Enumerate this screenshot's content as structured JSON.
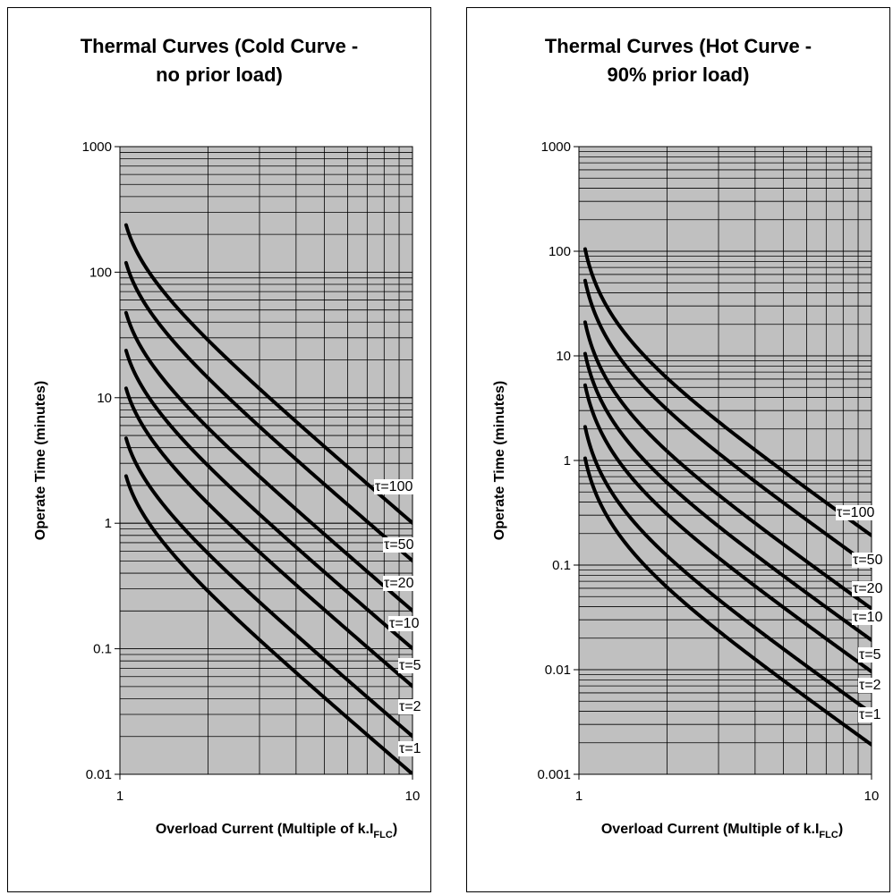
{
  "chart_data": [
    {
      "type": "line",
      "title_lines": [
        "Thermal Curves (Cold Curve -",
        "no prior load)"
      ],
      "xlabel": "Overload Current (Multiple of k.I",
      "xlabel_sub": "FLC",
      "xlabel_end": ")",
      "ylabel": "Operate Time (minutes)",
      "xscale": "log",
      "yscale": "log",
      "xlim": [
        1,
        10
      ],
      "ylim": [
        0.01,
        1000
      ],
      "x_ticks": [
        {
          "v": 1,
          "label": "1"
        },
        {
          "v": 10,
          "label": "10"
        }
      ],
      "y_ticks": [
        {
          "v": 0.01,
          "label": "0.01"
        },
        {
          "v": 0.1,
          "label": "0.1"
        },
        {
          "v": 1,
          "label": "1"
        },
        {
          "v": 10,
          "label": "10"
        },
        {
          "v": 100,
          "label": "100"
        },
        {
          "v": 1000,
          "label": "1000"
        }
      ],
      "grid": true,
      "plot_background": "#c0c0c0",
      "line_color": "#000000",
      "prior_load": 0.0,
      "x": [
        1.05,
        1.1,
        1.2,
        1.3,
        1.5,
        1.75,
        2,
        2.5,
        3,
        4,
        5,
        6,
        7,
        8,
        9,
        10
      ],
      "series": [
        {
          "label": "τ=100",
          "values": [
            237.9,
            154.1,
            93.6,
            68.3,
            44.6,
            30.4,
            22.6,
            14.3,
            10.0,
            5.99,
            4.06,
            2.94,
            2.24,
            1.75,
            1.4,
            1.13
          ]
        },
        {
          "label": "τ=50",
          "values": [
            118.9,
            77.0,
            46.8,
            34.1,
            22.3,
            15.2,
            11.3,
            7.16,
            5.03,
            3.0,
            2.03,
            1.47,
            1.12,
            0.877,
            0.702,
            0.566
          ]
        },
        {
          "label": "τ=20",
          "values": [
            47.6,
            30.8,
            18.7,
            13.7,
            8.93,
            6.08,
            4.53,
            2.86,
            2.01,
            1.2,
            0.813,
            0.589,
            0.447,
            0.351,
            0.281,
            0.226
          ]
        },
        {
          "label": "τ=10",
          "values": [
            23.8,
            15.4,
            9.36,
            6.83,
            4.46,
            3.04,
            2.26,
            1.43,
            1.01,
            0.599,
            0.406,
            0.294,
            0.224,
            0.175,
            0.14,
            0.113
          ]
        },
        {
          "label": "τ=5",
          "values": [
            11.9,
            7.7,
            4.68,
            3.41,
            2.23,
            1.52,
            1.13,
            0.716,
            0.503,
            0.3,
            0.203,
            0.147,
            0.112,
            0.0877,
            0.0702,
            0.0566
          ]
        },
        {
          "label": "τ=2",
          "values": [
            4.76,
            3.08,
            1.87,
            1.37,
            0.893,
            0.608,
            0.453,
            0.286,
            0.201,
            0.12,
            0.0813,
            0.0589,
            0.0447,
            0.0351,
            0.0281,
            0.0226
          ]
        },
        {
          "label": "τ=1",
          "values": [
            2.38,
            1.54,
            0.936,
            0.683,
            0.446,
            0.304,
            0.226,
            0.143,
            0.101,
            0.0599,
            0.0406,
            0.0294,
            0.0224,
            0.0175,
            0.014,
            0.0113
          ]
        }
      ]
    },
    {
      "type": "line",
      "title_lines": [
        "Thermal Curves (Hot Curve -",
        "90% prior load)"
      ],
      "xlabel": "Overload Current (Multiple of k.I",
      "xlabel_sub": "FLC",
      "xlabel_end": ")",
      "ylabel": "Operate Time (minutes)",
      "xscale": "log",
      "yscale": "log",
      "xlim": [
        1,
        10
      ],
      "ylim": [
        0.001,
        1000
      ],
      "x_ticks": [
        {
          "v": 1,
          "label": "1"
        },
        {
          "v": 10,
          "label": "10"
        }
      ],
      "y_ticks": [
        {
          "v": 0.001,
          "label": "0.001"
        },
        {
          "v": 0.01,
          "label": "0.01"
        },
        {
          "v": 0.1,
          "label": "0.1"
        },
        {
          "v": 1,
          "label": "1"
        },
        {
          "v": 10,
          "label": "10"
        },
        {
          "v": 100,
          "label": "100"
        },
        {
          "v": 1000,
          "label": "1000"
        }
      ],
      "grid": true,
      "plot_background": "#c0c0c0",
      "line_color": "#000000",
      "prior_load": 0.9,
      "x": [
        1.05,
        1.1,
        1.2,
        1.3,
        1.5,
        1.75,
        2,
        2.5,
        3,
        4,
        5,
        6,
        7,
        8,
        9,
        10
      ],
      "series": [
        {
          "label": "τ=100",
          "values": [
            103.9,
            53.4,
            25.2,
            16.2,
            9.08,
            5.55,
            3.89,
            2.33,
            1.58,
            0.919,
            0.621,
            0.45,
            0.343,
            0.271,
            0.219,
            0.18
          ]
        },
        {
          "label": "τ=50",
          "values": [
            51.9,
            26.7,
            12.6,
            8.08,
            4.54,
            2.77,
            1.95,
            1.16,
            0.792,
            0.459,
            0.31,
            0.225,
            0.172,
            0.135,
            0.11,
            0.0902
          ]
        },
        {
          "label": "τ=20",
          "values": [
            20.8,
            10.7,
            5.03,
            3.23,
            1.82,
            1.11,
            0.779,
            0.465,
            0.317,
            0.184,
            0.124,
            0.09,
            0.0686,
            0.0541,
            0.0438,
            0.0361
          ]
        },
        {
          "label": "τ=10",
          "values": [
            10.4,
            5.34,
            2.52,
            1.62,
            0.908,
            0.555,
            0.389,
            0.233,
            0.158,
            0.0919,
            0.0621,
            0.045,
            0.0343,
            0.0271,
            0.0219,
            0.018
          ]
        },
        {
          "label": "τ=5",
          "values": [
            5.19,
            2.67,
            1.26,
            0.808,
            0.454,
            0.277,
            0.195,
            0.116,
            0.0792,
            0.0459,
            0.031,
            0.0225,
            0.0172,
            0.0135,
            0.011,
            0.00902
          ]
        },
        {
          "label": "τ=2",
          "values": [
            2.08,
            1.07,
            0.503,
            0.323,
            0.182,
            0.111,
            0.0779,
            0.0465,
            0.0317,
            0.0184,
            0.0124,
            0.009,
            0.00686,
            0.00541,
            0.00438,
            0.00361
          ]
        },
        {
          "label": "τ=1",
          "values": [
            1.04,
            0.534,
            0.252,
            0.162,
            0.0908,
            0.0555,
            0.0389,
            0.0233,
            0.0158,
            0.00919,
            0.00621,
            0.0045,
            0.00343,
            0.00271,
            0.00219,
            0.0018
          ]
        }
      ]
    }
  ]
}
